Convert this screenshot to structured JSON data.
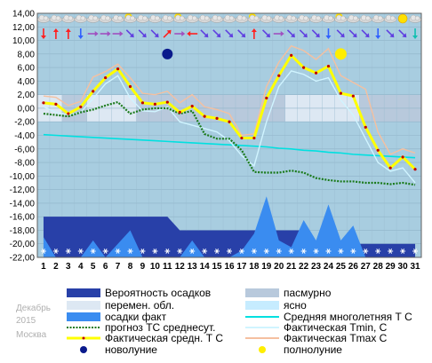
{
  "meta": {
    "month": "Декабрь",
    "year": "2015",
    "city": "Москва"
  },
  "colors": {
    "plot_bg": "#a8cde0",
    "overcast": "#b8c9dc",
    "variable_cloud": "#dde8f3",
    "clear": "#c6ecff",
    "precip_prob": "#2840a8",
    "precip_fact": "#3a8cf0",
    "forecast": "#1a7a1a",
    "climate": "#00e0e0",
    "tmin": "#d0f4ff",
    "tmax": "#f5c0a0",
    "tavg": "#ffff00",
    "new_moon": "#0a1a8c",
    "full_moon": "#ffee00"
  },
  "legend": {
    "precip_prob": "Вероятность осадков",
    "variable_cloud": "перемен. обл.",
    "precip_fact": "осадки факт",
    "forecast": "прогноз ТС среднесут.",
    "tavg": "Фактическая средн. Т С",
    "new_moon": "новолуние",
    "overcast": "пасмурно",
    "clear": "ясно",
    "climate": "Средняя многолетняя Т С",
    "tmin": "Фактическая Tmin, С",
    "tmax": "Фактическая Tmax С",
    "full_moon": "полнолуние"
  },
  "chart_data": {
    "type": "line",
    "xlabel": "",
    "ylabel": "",
    "ylim": [
      -22,
      14
    ],
    "y_ticks": [
      "14,00",
      "12,00",
      "10,00",
      "8,00",
      "6,00",
      "4,00",
      "2,00",
      "0,00",
      "-2,00",
      "-4,00",
      "-6,00",
      "-8,00",
      "-10,00",
      "-12,00",
      "-14,00",
      "-16,00",
      "-18,00",
      "-20,00",
      "-22,00"
    ],
    "x_ticks": [
      "1",
      "2",
      "3",
      "4",
      "5",
      "6",
      "7",
      "8",
      "9",
      "10",
      "11",
      "12",
      "13",
      "14",
      "15",
      "16",
      "17",
      "18",
      "19",
      "20",
      "21",
      "22",
      "23",
      "24",
      "25",
      "26",
      "27",
      "28",
      "29",
      "30",
      "31"
    ],
    "days": [
      1,
      2,
      3,
      4,
      5,
      6,
      7,
      8,
      9,
      10,
      11,
      12,
      13,
      14,
      15,
      16,
      17,
      18,
      19,
      20,
      21,
      22,
      23,
      24,
      25,
      26,
      27,
      28,
      29,
      30,
      31
    ],
    "series": [
      {
        "name": "Фактическая средн. Т С",
        "values": [
          0.8,
          0.6,
          -0.8,
          0.2,
          2.5,
          4.5,
          5.8,
          3.2,
          0.8,
          0.6,
          0.9,
          -0.6,
          0.3,
          -1.2,
          -1.5,
          -2.0,
          -4.4,
          -4.4,
          1.5,
          4.8,
          7.8,
          6.0,
          5.2,
          6.2,
          2.2,
          1.8,
          -2.8,
          -6.2,
          -8.8,
          -7.2,
          -9.0
        ]
      },
      {
        "name": "Фактическая Tmin, С",
        "values": [
          0.2,
          -0.6,
          -1.0,
          -0.6,
          1.4,
          3.6,
          4.8,
          1.5,
          -0.4,
          -0.5,
          0.2,
          -2.0,
          -2.5,
          -3.0,
          -3.5,
          -4.8,
          -7.0,
          -8.5,
          -2.0,
          3.2,
          5.5,
          5.0,
          4.0,
          4.5,
          1.2,
          -1.0,
          -4.5,
          -8.0,
          -9.3,
          -8.8,
          -11.0
        ]
      },
      {
        "name": "Фактическая Tmax С",
        "values": [
          1.8,
          1.6,
          0.4,
          1.0,
          4.6,
          5.4,
          6.5,
          4.5,
          2.2,
          2.0,
          2.5,
          0.8,
          2.0,
          0.2,
          -0.2,
          -0.8,
          -4.0,
          -3.8,
          3.2,
          6.8,
          9.2,
          8.5,
          7.2,
          8.8,
          4.8,
          3.8,
          2.8,
          -3.5,
          -6.8,
          -6.0,
          -6.6
        ]
      },
      {
        "name": "прогноз ТС среднесут.",
        "values": [
          -0.8,
          -1.0,
          -1.2,
          -0.6,
          -0.2,
          0.4,
          0.9,
          -0.8,
          -0.2,
          0.0,
          0.0,
          -0.8,
          -0.4,
          -3.8,
          -4.5,
          -4.5,
          -6.2,
          -9.4,
          -9.5,
          -9.5,
          -9.2,
          -9.5,
          -10.3,
          -10.6,
          -10.8,
          -10.8,
          -11.0,
          -11.0,
          -11.2,
          -11.0,
          -11.3
        ]
      },
      {
        "name": "Средняя многолетняя Т С",
        "values": [
          -3.9,
          -4.0,
          -4.1,
          -4.2,
          -4.3,
          -4.4,
          -4.5,
          -4.6,
          -4.7,
          -4.8,
          -4.9,
          -5.0,
          -5.1,
          -5.2,
          -5.3,
          -5.4,
          -5.5,
          -5.6,
          -5.7,
          -5.9,
          -6.0,
          -6.2,
          -6.3,
          -6.5,
          -6.6,
          -6.8,
          -6.9,
          -7.0,
          -7.1,
          -7.2,
          -7.3
        ]
      },
      {
        "name": "Вероятность осадков",
        "values": [
          -16,
          -16,
          -16,
          -16,
          -16,
          -16,
          -16,
          -16,
          -16,
          -16,
          -16,
          -18,
          -18,
          -18,
          -18,
          -18,
          -18,
          -18,
          -18,
          -18,
          -18,
          -18,
          -20,
          -20,
          -20,
          -20,
          -20,
          -20,
          -20,
          -20,
          -20
        ]
      },
      {
        "name": "осадки факт",
        "values": [
          -19,
          -22,
          -22,
          -22,
          -19.5,
          -22,
          -20,
          -18,
          -22,
          -22,
          -22,
          -22,
          -19.5,
          -22,
          -22,
          -22,
          -21,
          -18.5,
          -13,
          -19.5,
          -20.5,
          -16.5,
          -19.5,
          -14.2,
          -19.5,
          -17.3,
          -22,
          -22,
          -22,
          -22,
          -22
        ]
      }
    ],
    "cloud_cover": [
      "variable_cloud",
      "variable_cloud",
      "overcast",
      "overcast",
      "variable_cloud",
      "variable_cloud",
      "variable_cloud",
      "variable_cloud",
      "overcast",
      "overcast",
      "overcast",
      "overcast",
      "overcast",
      "overcast",
      "overcast",
      "overcast",
      "overcast",
      "overcast",
      "overcast",
      "overcast",
      "variable_cloud",
      "variable_cloud",
      "variable_cloud",
      "variable_cloud",
      "variable_cloud",
      "variable_cloud",
      "overcast",
      "overcast",
      "overcast",
      "overcast",
      "overcast"
    ],
    "snow_days": [
      1,
      2,
      3,
      4,
      5,
      6,
      7,
      8,
      9,
      10,
      11,
      12,
      13,
      14,
      15,
      16,
      17,
      18,
      19,
      20,
      21,
      22,
      23,
      24,
      25,
      26,
      27,
      28,
      29,
      30,
      31
    ],
    "new_moon_day": 11,
    "full_moon_day": 25,
    "moon_level": 8,
    "weather_icons": [
      "cloud-icon",
      "cloud-icon",
      "cloud-icon",
      "cloud-icon",
      "cloud-icon",
      "cloud-icon",
      "cloud-icon",
      "partly-sunny-icon",
      "cloud-icon",
      "cloud-icon",
      "cloud-icon",
      "partly-sunny-icon",
      "cloud-icon",
      "cloud-icon",
      "cloud-icon",
      "cloud-icon",
      "cloud-icon",
      "partly-sunny-icon",
      "cloud-icon",
      "cloud-icon",
      "cloud-icon",
      "cloud-icon",
      "cloud-icon",
      "cloud-icon",
      "partly-sunny-icon",
      "cloud-icon",
      "cloud-icon",
      "cloud-icon",
      "cloud-icon",
      "sunny-icon",
      "cloud-icon"
    ],
    "wind_arrows": [
      {
        "dir": "down",
        "color": "#ff2020"
      },
      {
        "dir": "up",
        "color": "#ff2020"
      },
      {
        "dir": "up",
        "color": "#ff2020"
      },
      {
        "dir": "down",
        "color": "#3060ff"
      },
      {
        "dir": "right",
        "color": "#a050c0"
      },
      {
        "dir": "right",
        "color": "#a050c0"
      },
      {
        "dir": "right",
        "color": "#a050c0"
      },
      {
        "dir": "down-right",
        "color": "#6040e0"
      },
      {
        "dir": "down-right",
        "color": "#6040e0"
      },
      {
        "dir": "down-right",
        "color": "#6040e0"
      },
      {
        "dir": "up-right",
        "color": "#ff2020"
      },
      {
        "dir": "right",
        "color": "#a050c0"
      },
      {
        "dir": "left",
        "color": "#ff2020"
      },
      {
        "dir": "down-right",
        "color": "#6040e0"
      },
      {
        "dir": "down-right",
        "color": "#6040e0"
      },
      {
        "dir": "down-right",
        "color": "#6040e0"
      },
      {
        "dir": "down-right",
        "color": "#6040e0"
      },
      {
        "dir": "up",
        "color": "#ff2020"
      },
      {
        "dir": "down-right",
        "color": "#6040e0"
      },
      {
        "dir": "right",
        "color": "#a050c0"
      },
      {
        "dir": "down-right",
        "color": "#6040e0"
      },
      {
        "dir": "down-right",
        "color": "#6040e0"
      },
      {
        "dir": "down-right",
        "color": "#6040e0"
      },
      {
        "dir": "down",
        "color": "#3060ff"
      },
      {
        "dir": "down-right",
        "color": "#6040e0"
      },
      {
        "dir": "down-right",
        "color": "#6040e0"
      },
      {
        "dir": "down-right",
        "color": "#6040e0"
      },
      {
        "dir": "down",
        "color": "#3060ff"
      },
      {
        "dir": "down-right",
        "color": "#6040e0"
      },
      {
        "dir": "down-right",
        "color": "#6040e0"
      },
      {
        "dir": "down",
        "color": "#10c0b0"
      }
    ]
  }
}
